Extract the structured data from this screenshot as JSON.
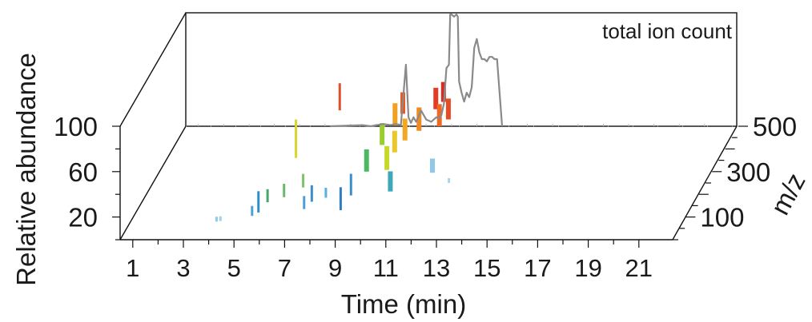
{
  "chart_data": {
    "type": "area",
    "title": "",
    "xlabel": "Time (min)",
    "ylabel": "Relative abundance",
    "zlabel": "m/z",
    "annotation": "total ion count",
    "xlim": [
      0,
      21
    ],
    "ylim": [
      0,
      100
    ],
    "zlim": [
      0,
      500
    ],
    "x_ticks": [
      "1",
      "3",
      "5",
      "7",
      "9",
      "11",
      "13",
      "15",
      "17",
      "19",
      "21"
    ],
    "y_ticks": [
      "20",
      "60",
      "100"
    ],
    "z_ticks": [
      "100",
      "300",
      "500"
    ],
    "total_ion_count": {
      "x": [
        6.2,
        7.5,
        7.8,
        8.3,
        8.6,
        8.8,
        9.0,
        9.2,
        9.3,
        9.4,
        9.5,
        9.6,
        9.8,
        10.0,
        10.2,
        10.3,
        10.4,
        10.5,
        10.6,
        10.7,
        10.8,
        10.9,
        10.95,
        11.0,
        11.1,
        11.2,
        11.25,
        11.3,
        11.4,
        11.5,
        11.6,
        11.7,
        11.8,
        11.9,
        12.0,
        12.1,
        12.2,
        12.3,
        12.4,
        12.5,
        12.6,
        12.7,
        12.8,
        13.0
      ],
      "values": [
        0,
        1,
        0,
        2,
        1,
        2,
        1,
        55,
        8,
        3,
        8,
        4,
        14,
        6,
        4,
        6,
        8,
        7,
        10,
        20,
        52,
        55,
        100,
        100,
        98,
        100,
        98,
        40,
        30,
        22,
        30,
        26,
        35,
        70,
        78,
        66,
        60,
        60,
        58,
        62,
        62,
        60,
        60,
        0
      ]
    },
    "peaks": [
      {
        "x": 4.0,
        "mz": 60,
        "values": [
          8,
          15
        ],
        "color": "#8ec9e8"
      },
      {
        "x": 4.1,
        "mz": 70,
        "values": [
          5,
          12
        ],
        "color": "#9bd1ee"
      },
      {
        "x": 5.3,
        "mz": 80,
        "values": [
          10,
          25
        ],
        "color": "#4aa3d8"
      },
      {
        "x": 5.5,
        "mz": 90,
        "values": [
          12,
          45
        ],
        "color": "#2f8fc8"
      },
      {
        "x": 5.6,
        "mz": 140,
        "values": [
          10,
          30
        ],
        "color": "#45a86a"
      },
      {
        "x": 6.1,
        "mz": 260,
        "values": [
          40,
          98
        ],
        "color": "#d8d62a"
      },
      {
        "x": 6.2,
        "mz": 150,
        "values": [
          15,
          35
        ],
        "color": "#6ab86a"
      },
      {
        "x": 6.8,
        "mz": 180,
        "values": [
          20,
          40
        ],
        "color": "#7fc06a"
      },
      {
        "x": 7.0,
        "mz": 420,
        "values": [
          60,
          98
        ],
        "color": "#e0502c"
      },
      {
        "x": 7.2,
        "mz": 110,
        "values": [
          10,
          30
        ],
        "color": "#4b9fd6"
      },
      {
        "x": 7.4,
        "mz": 130,
        "values": [
          15,
          40
        ],
        "color": "#3d8fcc"
      },
      {
        "x": 7.8,
        "mz": 160,
        "values": [
          10,
          25
        ],
        "color": "#5ab0e0"
      },
      {
        "x": 8.8,
        "mz": 80,
        "values": [
          20,
          55
        ],
        "color": "#2f7fc0"
      },
      {
        "x": 9.0,
        "mz": 120,
        "values": [
          30,
          62
        ],
        "color": "#3a8fcb"
      },
      {
        "x": 9.2,
        "mz": 200,
        "values": [
          40,
          72
        ],
        "color": "#4db862"
      },
      {
        "x": 9.4,
        "mz": 280,
        "values": [
          55,
          85
        ],
        "color": "#9acd32"
      },
      {
        "x": 9.6,
        "mz": 340,
        "values": [
          65,
          95
        ],
        "color": "#f2a020"
      },
      {
        "x": 9.7,
        "mz": 380,
        "values": [
          70,
          98
        ],
        "color": "#e85a22"
      },
      {
        "x": 9.9,
        "mz": 220,
        "values": [
          35,
          70
        ],
        "color": "#c6d82a"
      },
      {
        "x": 10.0,
        "mz": 260,
        "values": [
          50,
          80
        ],
        "color": "#e8c82a"
      },
      {
        "x": 10.2,
        "mz": 300,
        "values": [
          55,
          85
        ],
        "color": "#f5a623"
      },
      {
        "x": 10.4,
        "mz": 150,
        "values": [
          25,
          55
        ],
        "color": "#3fa8b8"
      },
      {
        "x": 10.6,
        "mz": 330,
        "values": [
          60,
          92
        ],
        "color": "#f08a22"
      },
      {
        "x": 10.9,
        "mz": 400,
        "values": [
          70,
          98
        ],
        "color": "#e63a22"
      },
      {
        "x": 11.1,
        "mz": 420,
        "values": [
          75,
          100
        ],
        "color": "#dd2a1e"
      },
      {
        "x": 11.3,
        "mz": 350,
        "values": [
          60,
          90
        ],
        "color": "#ee6a24"
      },
      {
        "x": 11.5,
        "mz": 380,
        "values": [
          60,
          88
        ],
        "color": "#e84a22"
      },
      {
        "x": 11.7,
        "mz": 220,
        "values": [
          30,
          50
        ],
        "color": "#8ec9e8"
      },
      {
        "x": 12.3,
        "mz": 230,
        "values": [
          8,
          15
        ],
        "color": "#a6d5f0"
      }
    ]
  }
}
